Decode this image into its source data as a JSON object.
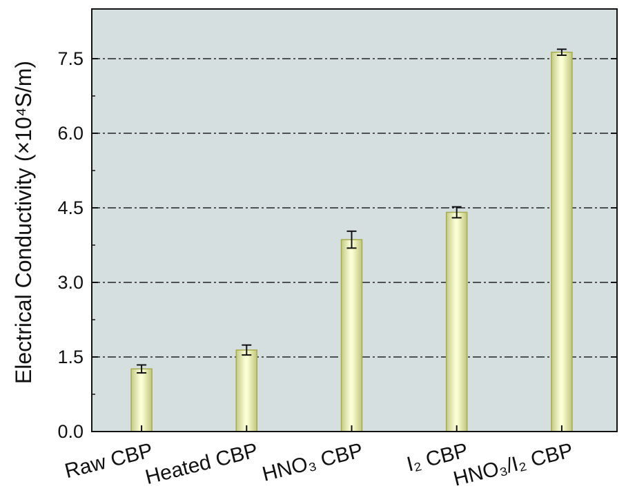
{
  "chart_data": {
    "type": "bar",
    "categories": [
      "Raw CBP",
      "Heated CBP",
      "HNO₃ CBP",
      "I₂ CBP",
      "HNO₃/I₂ CBP"
    ],
    "values": [
      1.26,
      1.64,
      3.86,
      4.41,
      7.63
    ],
    "errors": [
      0.08,
      0.1,
      0.17,
      0.11,
      0.06
    ],
    "ylabel": "Electrical Conductivity (×10⁴S/m)",
    "ylim": [
      0,
      8.5
    ],
    "yticks": [
      "0.0",
      "1.5",
      "3.0",
      "4.5",
      "6.0",
      "7.5"
    ],
    "grid": "horizontal dash-dot at major ticks",
    "colors": {
      "plot_background": "#d5dfe0",
      "bar_edge": "#a8ab4a",
      "bar_center": "#fbffd6",
      "bar_side": "#c9d08a",
      "grid": "#222222"
    }
  }
}
